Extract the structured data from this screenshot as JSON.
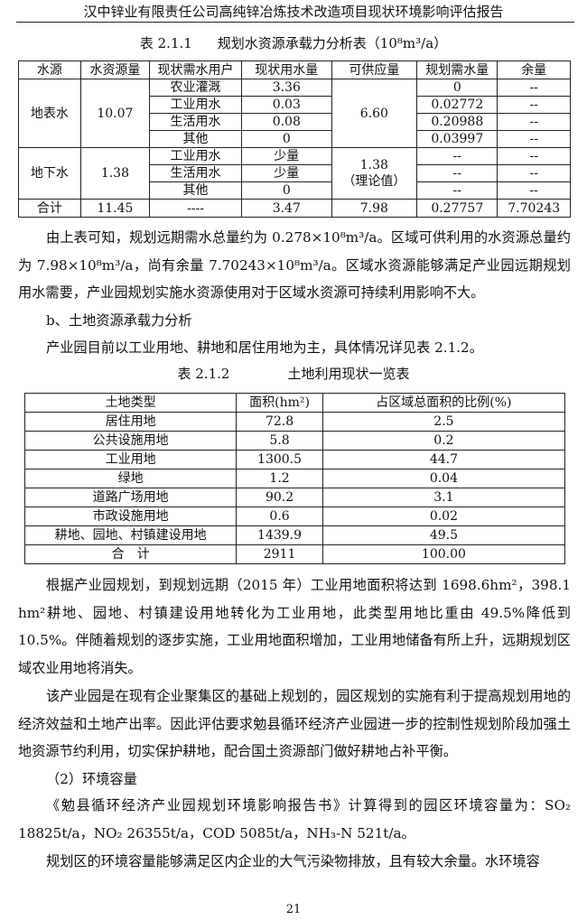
{
  "header": "汉中锌业有限责任公司高纯锌冶炼技术改造项目现状环境影响评估报告",
  "table1": {
    "number": "表 2.1.1",
    "title": "规划水资源承载力分析表（10⁸m³/a）",
    "headers": [
      "水源",
      "水资源量",
      "现状需水用户",
      "现状用水量",
      "可供应量",
      "规划需水量",
      "余量"
    ],
    "surface": {
      "source": "地表水",
      "amount": "10.07",
      "supply": "6.60",
      "rows": [
        [
          "农业灌溉",
          "3.36",
          "0",
          "--"
        ],
        [
          "工业用水",
          "0.03",
          "0.02772",
          "--"
        ],
        [
          "生活用水",
          "0.08",
          "0.20988",
          "--"
        ],
        [
          "其他",
          "0",
          "0.03997",
          "--"
        ]
      ]
    },
    "ground": {
      "source": "地下水",
      "amount": "1.38",
      "supply": "1.38",
      "supply_note": "（理论值）",
      "rows": [
        [
          "工业用水",
          "少量",
          "--",
          "--"
        ],
        [
          "生活用水",
          "少量",
          "--",
          "--"
        ],
        [
          "其他",
          "0",
          "--",
          "--"
        ]
      ]
    },
    "total": [
      "合计",
      "11.45",
      "----",
      "3.47",
      "7.98",
      "0.27757",
      "7.70243"
    ]
  },
  "para1": "由上表可知，规划远期需水总量约为 0.278×10⁸m³/a。区域可供利用的水资源总量约为 7.98×10⁸m³/a，尚有余量 7.70243×10⁸m³/a。区域水资源能够满足产业园远期规划用水需要，产业园规划实施水资源使用对于区域水资源可持续利用影响不大。",
  "heading_b": "b、土地资源承载力分析",
  "para2": "产业园目前以工业用地、耕地和居住用地为主，具体情况详见表 2.1.2。",
  "table2": {
    "number": "表 2.1.2",
    "title": "土地利用现状一览表",
    "headers": [
      "土地类型",
      "面积(hm²)",
      "占区域总面积的比例(%)"
    ],
    "rows": [
      [
        "居住用地",
        "72.8",
        "2.5"
      ],
      [
        "公共设施用地",
        "5.8",
        "0.2"
      ],
      [
        "工业用地",
        "1300.5",
        "44.7"
      ],
      [
        "绿地",
        "1.2",
        "0.04"
      ],
      [
        "道路广场用地",
        "90.2",
        "3.1"
      ],
      [
        "市政设施用地",
        "0.6",
        "0.02"
      ],
      [
        "耕地、园地、村镇建设用地",
        "1439.9",
        "49.5"
      ],
      [
        "合　计",
        "2911",
        "100.00"
      ]
    ]
  },
  "para3": "根据产业园规划，到规划远期（2015 年）工业用地面积将达到 1698.6hm²，398.1 hm²耕地、园地、村镇建设用地转化为工业用地，此类型用地比重由 49.5%降低到 10.5%。伴随着规划的逐步实施，工业用地面积增加，工业用地储备有所上升，远期规划区域农业用地将消失。",
  "para4": "该产业园是在现有企业聚集区的基础上规划的，园区规划的实施有利于提高规划用地的经济效益和土地产出率。因此评估要求勉县循环经济产业园进一步的控制性规划阶段加强土地资源节约利用，切实保护耕地，配合国土资源部门做好耕地占补平衡。",
  "heading_2": "（2）环境容量",
  "para5": "《勉县循环经济产业园规划环境影响报告书》计算得到的园区环境容量为：SO₂ 18825t/a，NO₂ 26355t/a，COD 5085t/a，NH₃-N 521t/a。",
  "para6": "规划区的环境容量能够满足区内企业的大气污染物排放，且有较大余量。水环境容",
  "page_number": "21"
}
